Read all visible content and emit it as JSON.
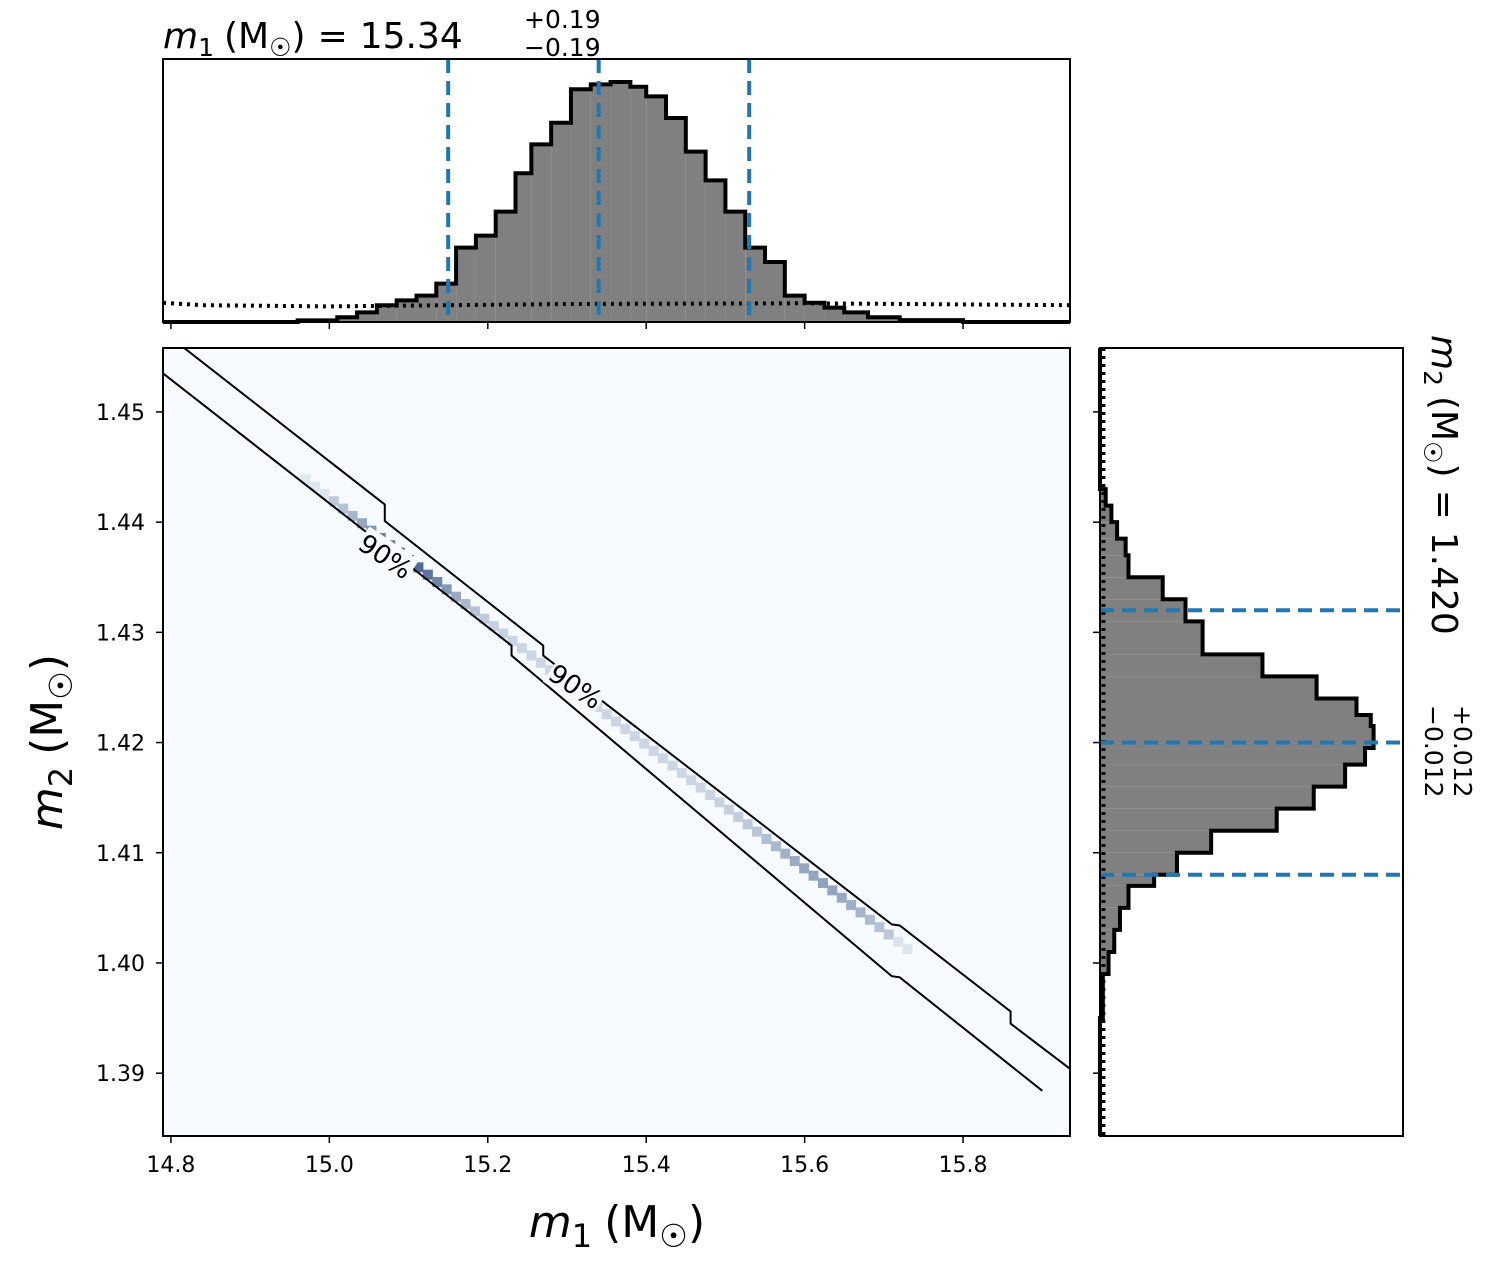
{
  "chart_data": {
    "type": "corner",
    "panels": [
      {
        "id": "top-histogram",
        "type": "histogram",
        "variable": "m1",
        "title": {
          "symbol": "m",
          "sub": "1",
          "unit": "(M",
          "unit_close": ")",
          "equals": "=",
          "value": "15.34",
          "plus": "+0.19",
          "minus": "−0.19"
        },
        "xlim": [
          14.79,
          15.935
        ],
        "bins": [
          {
            "x0": 14.79,
            "x1": 14.96,
            "y": 0.0
          },
          {
            "x0": 14.96,
            "x1": 15.01,
            "y": 0.007
          },
          {
            "x0": 15.01,
            "x1": 15.035,
            "y": 0.02
          },
          {
            "x0": 15.035,
            "x1": 15.06,
            "y": 0.04
          },
          {
            "x0": 15.06,
            "x1": 15.085,
            "y": 0.07
          },
          {
            "x0": 15.085,
            "x1": 15.11,
            "y": 0.09
          },
          {
            "x0": 15.11,
            "x1": 15.135,
            "y": 0.11
          },
          {
            "x0": 15.135,
            "x1": 15.16,
            "y": 0.16
          },
          {
            "x0": 15.16,
            "x1": 15.185,
            "y": 0.31
          },
          {
            "x0": 15.185,
            "x1": 15.21,
            "y": 0.36
          },
          {
            "x0": 15.21,
            "x1": 15.235,
            "y": 0.46
          },
          {
            "x0": 15.235,
            "x1": 15.255,
            "y": 0.62
          },
          {
            "x0": 15.255,
            "x1": 15.28,
            "y": 0.74
          },
          {
            "x0": 15.28,
            "x1": 15.305,
            "y": 0.83
          },
          {
            "x0": 15.305,
            "x1": 15.33,
            "y": 0.97
          },
          {
            "x0": 15.33,
            "x1": 15.355,
            "y": 0.99
          },
          {
            "x0": 15.355,
            "x1": 15.38,
            "y": 1.0
          },
          {
            "x0": 15.38,
            "x1": 15.4,
            "y": 0.98
          },
          {
            "x0": 15.4,
            "x1": 15.425,
            "y": 0.94
          },
          {
            "x0": 15.425,
            "x1": 15.45,
            "y": 0.85
          },
          {
            "x0": 15.45,
            "x1": 15.475,
            "y": 0.71
          },
          {
            "x0": 15.475,
            "x1": 15.5,
            "y": 0.59
          },
          {
            "x0": 15.5,
            "x1": 15.525,
            "y": 0.46
          },
          {
            "x0": 15.525,
            "x1": 15.55,
            "y": 0.31
          },
          {
            "x0": 15.55,
            "x1": 15.575,
            "y": 0.25
          },
          {
            "x0": 15.575,
            "x1": 15.6,
            "y": 0.11
          },
          {
            "x0": 15.6,
            "x1": 15.625,
            "y": 0.08
          },
          {
            "x0": 15.625,
            "x1": 15.65,
            "y": 0.06
          },
          {
            "x0": 15.65,
            "x1": 15.68,
            "y": 0.04
          },
          {
            "x0": 15.68,
            "x1": 15.72,
            "y": 0.02
          },
          {
            "x0": 15.72,
            "x1": 15.8,
            "y": 0.008
          },
          {
            "x0": 15.8,
            "x1": 15.935,
            "y": 0.0
          }
        ],
        "prior_dotted": [
          {
            "x": 14.79,
            "y": 0.08
          },
          {
            "x": 14.84,
            "y": 0.07
          },
          {
            "x": 15.0,
            "x2": 15.0,
            "y": 0.065
          },
          {
            "x": 15.3,
            "y": 0.075
          },
          {
            "x": 15.6,
            "y": 0.078
          },
          {
            "x": 15.935,
            "y": 0.07
          }
        ],
        "quantile_lines": [
          15.15,
          15.34,
          15.53
        ]
      },
      {
        "id": "joint-2d",
        "type": "heatmap",
        "xlabel": {
          "symbol": "m",
          "sub": "1",
          "unit": "(M",
          "unit_close": ")"
        },
        "ylabel": {
          "symbol": "m",
          "sub": "2",
          "unit": "(M",
          "unit_close": ")"
        },
        "xlim": [
          14.79,
          15.935
        ],
        "ylim": [
          1.3843,
          1.4558
        ],
        "xticks": [
          14.8,
          15.0,
          15.2,
          15.4,
          15.6,
          15.8
        ],
        "xtick_labels": [
          "14.8",
          "15.0",
          "15.2",
          "15.4",
          "15.6",
          "15.8"
        ],
        "yticks": [
          1.39,
          1.4,
          1.41,
          1.42,
          1.43,
          1.44,
          1.45
        ],
        "ytick_labels": [
          "1.39",
          "1.40",
          "1.41",
          "1.42",
          "1.43",
          "1.44",
          "1.45"
        ],
        "cmap": "Blues",
        "background": "#f7fbff",
        "ridge": {
          "slope_dy_dx": -0.0561,
          "x_start": 14.97,
          "x_end": 15.73,
          "peak_x": 15.1
        },
        "contour_level": "90%",
        "contour_upper": [
          [
            14.79,
            1.4573
          ],
          [
            15.07,
            1.4416
          ],
          [
            15.07,
            1.4401
          ],
          [
            15.27,
            1.4288
          ],
          [
            15.27,
            1.4279
          ],
          [
            15.71,
            1.4035
          ],
          [
            15.72,
            1.4034
          ],
          [
            15.86,
            1.3956
          ],
          [
            15.86,
            1.3945
          ],
          [
            15.935,
            1.3904
          ]
        ],
        "contour_lower": [
          [
            14.79,
            1.4535
          ],
          [
            15.23,
            1.4288
          ],
          [
            15.23,
            1.4279
          ],
          [
            15.71,
            1.3988
          ],
          [
            15.72,
            1.3987
          ],
          [
            15.9,
            1.3884
          ]
        ],
        "contour_labels": [
          {
            "text": "90%",
            "x": 15.07,
            "y": 1.4368,
            "angle": 34
          },
          {
            "text": "90%",
            "x": 15.31,
            "y": 1.425,
            "angle": 34
          }
        ]
      },
      {
        "id": "right-histogram",
        "type": "histogram",
        "orientation": "horizontal",
        "variable": "m2",
        "title": {
          "symbol": "m",
          "sub": "2",
          "unit": "(M",
          "unit_close": ")",
          "equals": "=",
          "value": "1.420",
          "plus": "+0.012",
          "minus": "−0.012"
        },
        "ylim": [
          1.3843,
          1.4558
        ],
        "bins": [
          {
            "y0": 1.3843,
            "y1": 1.395,
            "v": 0.0
          },
          {
            "y0": 1.395,
            "y1": 1.399,
            "v": 0.01
          },
          {
            "y0": 1.399,
            "y1": 1.401,
            "v": 0.03
          },
          {
            "y0": 1.401,
            "y1": 1.403,
            "v": 0.05
          },
          {
            "y0": 1.403,
            "y1": 1.405,
            "v": 0.07
          },
          {
            "y0": 1.405,
            "y1": 1.407,
            "v": 0.1
          },
          {
            "y0": 1.407,
            "y1": 1.408,
            "v": 0.19
          },
          {
            "y0": 1.408,
            "y1": 1.41,
            "v": 0.27
          },
          {
            "y0": 1.41,
            "y1": 1.412,
            "v": 0.39
          },
          {
            "y0": 1.412,
            "y1": 1.414,
            "v": 0.62
          },
          {
            "y0": 1.414,
            "y1": 1.416,
            "v": 0.75
          },
          {
            "y0": 1.416,
            "y1": 1.418,
            "v": 0.86
          },
          {
            "y0": 1.418,
            "y1": 1.4195,
            "v": 0.93
          },
          {
            "y0": 1.4195,
            "y1": 1.4215,
            "v": 0.96
          },
          {
            "y0": 1.4215,
            "y1": 1.4225,
            "v": 0.95
          },
          {
            "y0": 1.4225,
            "y1": 1.424,
            "v": 0.9
          },
          {
            "y0": 1.424,
            "y1": 1.426,
            "v": 0.76
          },
          {
            "y0": 1.426,
            "y1": 1.428,
            "v": 0.57
          },
          {
            "y0": 1.428,
            "y1": 1.431,
            "v": 0.36
          },
          {
            "y0": 1.431,
            "y1": 1.433,
            "v": 0.3
          },
          {
            "y0": 1.433,
            "y1": 1.435,
            "v": 0.22
          },
          {
            "y0": 1.435,
            "y1": 1.437,
            "v": 0.1
          },
          {
            "y0": 1.437,
            "y1": 1.4385,
            "v": 0.09
          },
          {
            "y0": 1.4385,
            "y1": 1.44,
            "v": 0.06
          },
          {
            "y0": 1.44,
            "y1": 1.4415,
            "v": 0.04
          },
          {
            "y0": 1.4415,
            "y1": 1.443,
            "v": 0.02
          },
          {
            "y0": 1.443,
            "y1": 1.4558,
            "v": 0.0
          }
        ],
        "prior_dotted_v": 0.012,
        "quantile_lines": [
          1.408,
          1.42,
          1.432
        ]
      }
    ],
    "colors": {
      "hist_fill": "#808080",
      "hist_edge": "#000000",
      "quantile": "#1f77b4",
      "heat_low": "#f7fbff",
      "heat_high": "#08306b"
    }
  }
}
